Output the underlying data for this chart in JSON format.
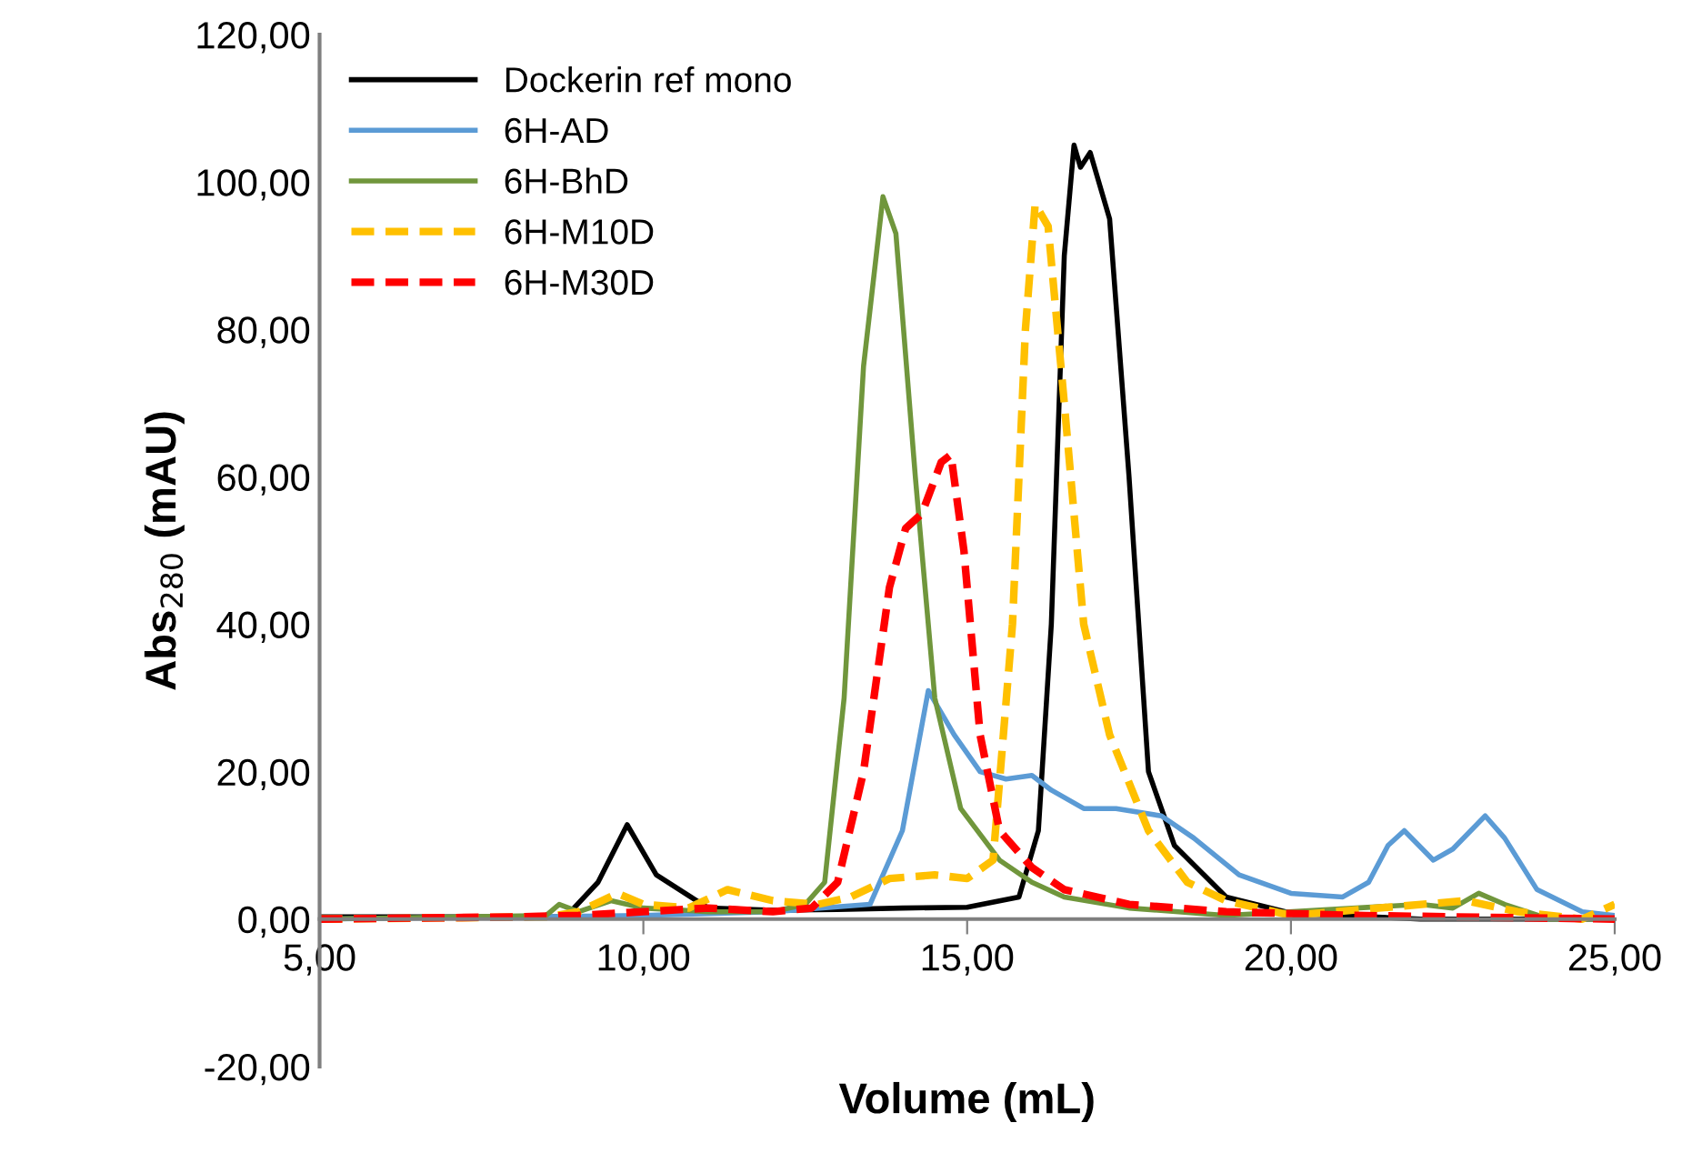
{
  "chart_data": {
    "type": "line",
    "xlabel": "Volume (mL)",
    "ylabel": "Abs$_{280}$ (mAU)",
    "xlim": [
      5,
      25
    ],
    "ylim": [
      -20,
      120
    ],
    "xticks": [
      {
        "value": 5,
        "label": "5,00"
      },
      {
        "value": 10,
        "label": "10,00"
      },
      {
        "value": 15,
        "label": "15,00"
      },
      {
        "value": 20,
        "label": "20,00"
      },
      {
        "value": 25,
        "label": "25,00"
      }
    ],
    "yticks": [
      {
        "value": -20,
        "label": "-20,00"
      },
      {
        "value": 0,
        "label": "0,00"
      },
      {
        "value": 20,
        "label": "20,00"
      },
      {
        "value": 40,
        "label": "40,00"
      },
      {
        "value": 60,
        "label": "60,00"
      },
      {
        "value": 80,
        "label": "80,00"
      },
      {
        "value": 100,
        "label": "100,00"
      },
      {
        "value": 120,
        "label": "120,00"
      }
    ],
    "grid": false,
    "legend": "top left",
    "marker": "none",
    "series": [
      {
        "name": "Dockerin ref mono",
        "color": "#000000",
        "line_style": "solid",
        "x": [
          5,
          8.8,
          9.3,
          9.75,
          10.2,
          11,
          12,
          13,
          14,
          15,
          15.8,
          16.1,
          16.3,
          16.5,
          16.65,
          16.75,
          16.9,
          17.2,
          17.5,
          17.8,
          18.2,
          19,
          20,
          22,
          25
        ],
        "values": [
          0.3,
          0.3,
          5,
          12.8,
          6,
          1.5,
          1.2,
          1.3,
          1.5,
          1.6,
          3,
          12,
          40,
          90,
          105,
          102,
          104,
          95,
          60,
          20,
          10,
          3,
          0.8,
          0,
          0
        ]
      },
      {
        "name": "6H-AD",
        "color": "#5b9bd5",
        "line_style": "solid",
        "x": [
          5,
          10,
          12,
          13.5,
          14,
          14.4,
          14.8,
          15.2,
          15.6,
          16,
          16.3,
          16.8,
          17.3,
          18,
          18.5,
          19.2,
          20,
          20.8,
          21.2,
          21.5,
          21.75,
          22.2,
          22.5,
          23,
          23.3,
          23.8,
          24.5,
          25
        ],
        "values": [
          0,
          0.5,
          1,
          2,
          12,
          31,
          25,
          20,
          19,
          19.5,
          17.5,
          15,
          15,
          14,
          11,
          6,
          3.5,
          3,
          5,
          10,
          12,
          8,
          9.5,
          14,
          11,
          4,
          1,
          0.5
        ]
      },
      {
        "name": "6H-BhD",
        "color": "#70963c",
        "line_style": "solid",
        "x": [
          5,
          8.5,
          8.7,
          9,
          9.5,
          10,
          11,
          12,
          12.5,
          12.8,
          13.1,
          13.4,
          13.7,
          13.9,
          14.2,
          14.5,
          14.9,
          15.5,
          16,
          16.5,
          17.5,
          19,
          21,
          22,
          22.5,
          22.9,
          23.3,
          24,
          25
        ],
        "values": [
          0,
          0.5,
          2,
          1,
          2.5,
          1.5,
          1,
          1,
          2,
          5,
          30,
          75,
          98,
          93,
          60,
          30,
          15,
          8,
          5,
          3,
          1.5,
          0.5,
          1.5,
          2,
          1.5,
          3.5,
          2,
          0,
          0
        ]
      },
      {
        "name": "6H-M10D",
        "color": "#ffc000",
        "line_style": "dashed",
        "x": [
          5,
          8.5,
          9,
          9.6,
          10,
          10.7,
          11.3,
          12,
          12.7,
          13.2,
          13.8,
          14.5,
          15,
          15.4,
          15.7,
          15.9,
          16.05,
          16.25,
          16.5,
          16.8,
          17.2,
          17.8,
          18.4,
          19,
          20,
          22.7,
          23.5,
          24.5,
          25
        ],
        "values": [
          0,
          0.3,
          1,
          3.5,
          2,
          1.5,
          4,
          2.5,
          2,
          3,
          5.5,
          6,
          5.5,
          8,
          40,
          80,
          97,
          94,
          70,
          40,
          25,
          12,
          5,
          2.5,
          0.5,
          2.5,
          1,
          0,
          2
        ]
      },
      {
        "name": "6H-M30D",
        "color": "#ff0000",
        "line_style": "dashed",
        "x": [
          5,
          8,
          9,
          10,
          11,
          12,
          12.6,
          13,
          13.4,
          13.8,
          14.05,
          14.3,
          14.6,
          14.75,
          14.95,
          15.2,
          15.5,
          16,
          16.5,
          17.5,
          19,
          21,
          25
        ],
        "values": [
          0,
          0.3,
          0.5,
          1,
          1.5,
          1,
          1.5,
          5,
          20,
          45,
          53,
          55,
          62,
          63,
          50,
          25,
          12,
          7,
          4,
          2,
          1,
          0.5,
          0
        ]
      }
    ]
  }
}
